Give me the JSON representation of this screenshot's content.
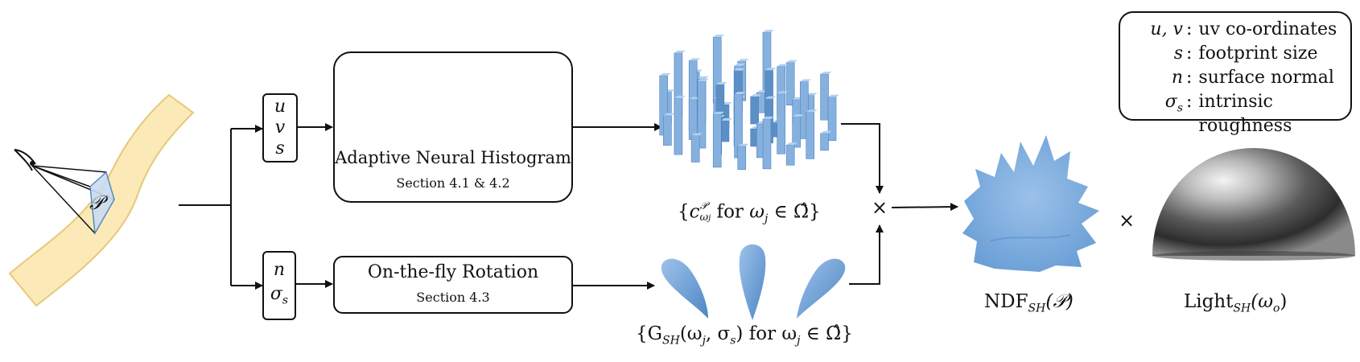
{
  "inputs_top": [
    "u",
    "v",
    "s"
  ],
  "inputs_bottom": [
    "n",
    "σ"
  ],
  "inputs_bottom_sub": "s",
  "surface_point_label": "𝒫",
  "neural_box": {
    "title": "Adaptive Neural Histogram",
    "subtitle": "Section 4.1 & 4.2"
  },
  "rotation_box": {
    "title": "On-the-fly Rotation",
    "subtitle": "Section 4.3"
  },
  "histogram_caption": {
    "open": "{",
    "c": "c",
    "c_sup": "𝒫",
    "c_sub": "ω",
    "c_sub_sub": "j",
    "mid": " for ",
    "omega": "ω",
    "omega_sub": "j",
    "in": " ∈ Ω̂}"
  },
  "lobes_caption": {
    "open": "{G",
    "G_sub": "SH",
    "args": "(ω",
    "args_sub": "j",
    "args_rest": ", σ",
    "args_rest_sub": "s",
    "close": ") for ω",
    "omega_sub": "j",
    "in": " ∈ Ω̂}"
  },
  "multiply_symbol_1": "×",
  "multiply_symbol_2": "×",
  "ndf_caption": {
    "main": "NDF",
    "sub": "SH",
    "arg": "(𝒫)"
  },
  "light_caption": {
    "main": "Light",
    "sub": "SH",
    "arg": "(ω",
    "arg_sub": "o",
    "close": ")"
  },
  "legend": [
    {
      "sym": "u, v",
      "desc": "uv co-ordinates"
    },
    {
      "sym": "s",
      "desc": "footprint size"
    },
    {
      "sym": "n",
      "desc": "surface normal"
    },
    {
      "sym": "σ",
      "sym_sub": "s",
      "desc": "intrinsic roughness"
    }
  ],
  "colors": {
    "surface_fill": "#fbeab8",
    "surface_stroke": "#e8c878",
    "blue": "#7aaad9",
    "blue_dark": "#4a7fb8",
    "blue_light": "#a9c8ea",
    "line": "#111111"
  }
}
